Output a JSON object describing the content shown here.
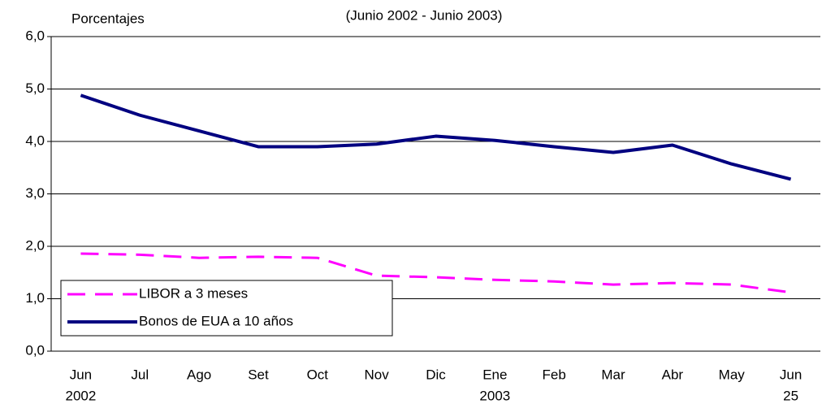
{
  "chart_data": {
    "type": "line",
    "y_axis_label": "Porcentajes",
    "subtitle": "(Junio 2002 - Junio 2003)",
    "categories": [
      "Jun",
      "Jul",
      "Ago",
      "Set",
      "Oct",
      "Nov",
      "Dic",
      "Ene",
      "Feb",
      "Mar",
      "Abr",
      "May",
      "Jun"
    ],
    "category_sublabels": [
      "2002",
      null,
      null,
      null,
      null,
      null,
      null,
      "2003",
      null,
      null,
      null,
      null,
      "25"
    ],
    "series": [
      {
        "name": "LIBOR a 3  meses",
        "color": "#ff00ff",
        "dashed": true,
        "values": [
          1.86,
          1.84,
          1.78,
          1.8,
          1.78,
          1.44,
          1.41,
          1.36,
          1.33,
          1.27,
          1.3,
          1.27,
          1.12
        ]
      },
      {
        "name": "Bonos de EUA a 10 años",
        "color": "#000080",
        "dashed": false,
        "values": [
          4.88,
          4.5,
          4.2,
          3.9,
          3.9,
          3.95,
          4.1,
          4.02,
          3.9,
          3.79,
          3.93,
          3.57,
          3.28
        ]
      }
    ],
    "ylim": [
      0,
      6
    ],
    "yticks": [
      {
        "value": 0,
        "label": "0,0"
      },
      {
        "value": 1,
        "label": "1,0"
      },
      {
        "value": 2,
        "label": "2,0"
      },
      {
        "value": 3,
        "label": "3,0"
      },
      {
        "value": 4,
        "label": "4,0"
      },
      {
        "value": 5,
        "label": "5,0"
      },
      {
        "value": 6,
        "label": "6,0"
      }
    ],
    "grid": true,
    "legend": "lower left"
  }
}
